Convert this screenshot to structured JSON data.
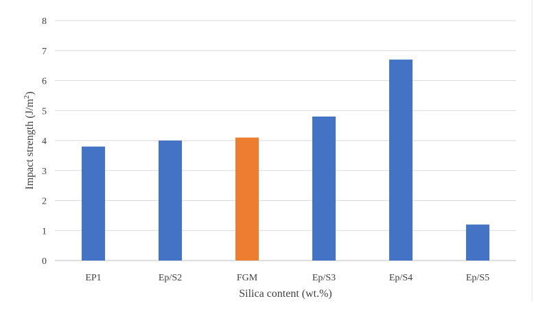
{
  "chart_data": {
    "type": "bar",
    "categories": [
      "EP1",
      "Ep/S2",
      "FGM",
      "Ep/S3",
      "Ep/S4",
      "Ep/S5"
    ],
    "values": [
      3.8,
      4.0,
      4.1,
      4.8,
      6.7,
      1.2
    ],
    "bar_colors": [
      "#4472c4",
      "#4472c4",
      "#ed7d31",
      "#4472c4",
      "#4472c4",
      "#4472c4"
    ],
    "title": "",
    "xlabel": "Silica content (wt.%)",
    "ylabel_main": "Impact strength (J/m",
    "ylabel_sup": "2",
    "ylabel_close": ")",
    "ylim": [
      0,
      8
    ],
    "yticks": [
      "0",
      "1",
      "2",
      "3",
      "4",
      "5",
      "6",
      "7",
      "8"
    ],
    "grid": true,
    "legend": "none"
  }
}
